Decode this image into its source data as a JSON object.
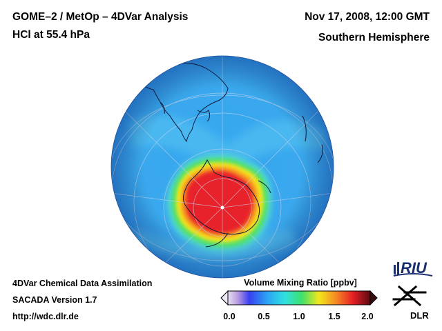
{
  "header": {
    "title_line1": "GOME–2 / MetOp – 4DVar Analysis",
    "title_line2": "HCl at 55.4 hPa",
    "date": "Nov 17, 2008, 12:00 GMT",
    "hemisphere": "Southern Hemisphere"
  },
  "footer": {
    "line1": "4DVar Chemical Data Assimilation",
    "line2": "SACADA Version 1.7",
    "line3": "http://wdc.dlr.de"
  },
  "colorbar": {
    "label": "Volume Mixing Ratio [ppbv]",
    "ticks": [
      "0.0",
      "0.5",
      "1.0",
      "1.5",
      "2.0"
    ],
    "min": 0.0,
    "max": 2.0
  },
  "logos": {
    "riu": "RIU",
    "dlr": "DLR"
  },
  "colors": {
    "background_field": "#3aa8ee",
    "high_core": "#e8202a",
    "high_edge": "#f7e61b"
  }
}
